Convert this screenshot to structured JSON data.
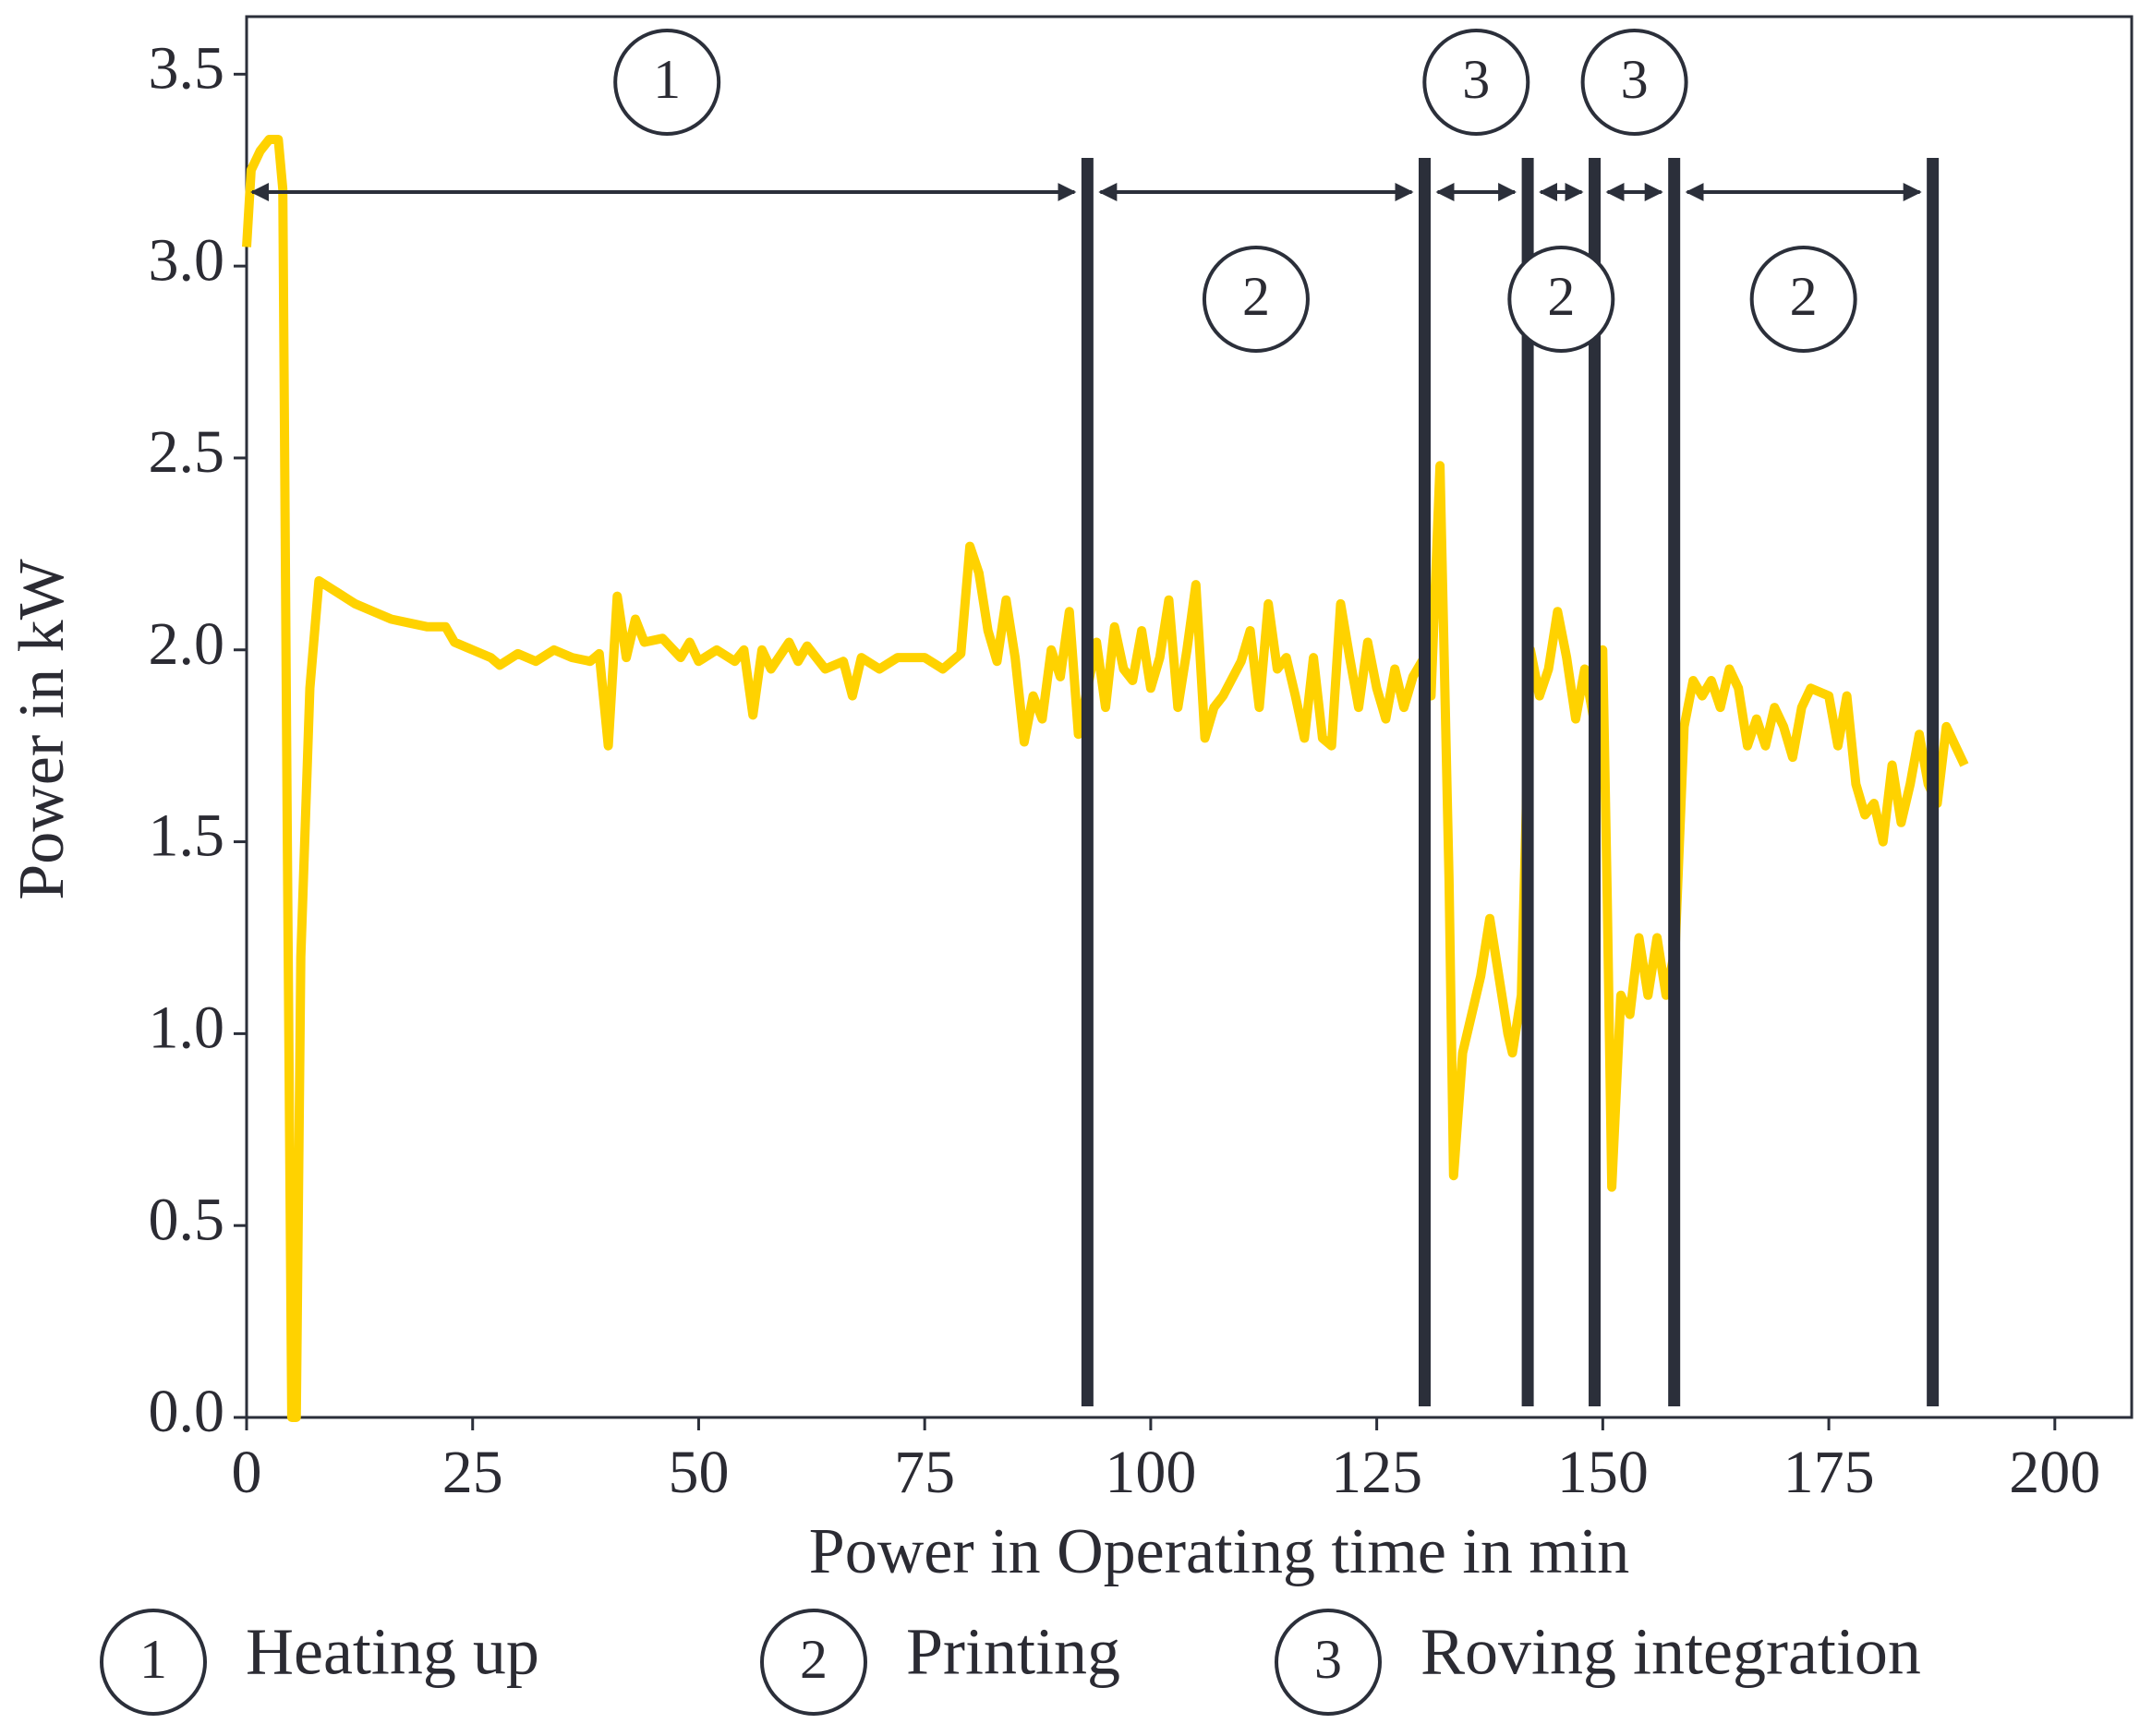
{
  "chart_data": {
    "type": "line",
    "x_label": "Power in Operating time in min",
    "y_label": "Power in kW",
    "xlim": [
      0,
      208.5
    ],
    "ylim": [
      0,
      3.65
    ],
    "xticks": [
      0,
      25,
      50,
      75,
      100,
      125,
      150,
      175,
      200
    ],
    "yticks": [
      {
        "value": 0,
        "label": "0.0"
      },
      0.5,
      {
        "value": 1,
        "label": "1.0"
      },
      1.5,
      {
        "value": 2,
        "label": "2.0"
      },
      2.5,
      {
        "value": 3,
        "label": "3.0"
      },
      3.5
    ],
    "grid": false,
    "color": "#ffd200",
    "x": [
      0,
      0.5,
      1.5,
      2.5,
      3.5,
      4,
      4.5,
      5,
      5.5,
      6,
      7,
      8,
      10,
      12,
      14,
      16,
      18,
      20,
      22,
      23,
      25,
      27,
      28,
      30,
      32,
      34,
      36,
      38,
      39,
      40,
      41,
      42,
      43,
      44,
      46,
      48,
      49,
      50,
      52,
      54,
      55,
      56,
      57,
      58,
      60,
      61,
      62,
      64,
      66,
      67,
      68,
      70,
      72,
      75,
      77,
      79,
      80,
      81,
      82,
      83,
      84,
      85,
      86,
      87,
      88,
      89,
      90,
      91,
      92,
      93,
      94,
      95,
      96,
      97,
      98,
      99,
      100,
      101,
      102,
      103,
      104,
      105,
      106,
      107,
      108,
      110,
      111,
      112,
      113,
      114,
      115,
      116,
      117,
      118,
      119,
      120,
      121,
      122,
      123,
      124,
      125,
      126,
      127,
      128,
      129,
      130,
      131,
      132,
      133,
      133.5,
      134.5,
      135.5,
      136.5,
      137.5,
      138.5,
      139.5,
      140,
      141,
      142,
      143,
      144,
      145,
      146,
      147,
      148,
      149,
      150,
      150.5,
      151,
      152,
      153,
      154,
      155,
      156,
      157,
      158,
      159,
      160,
      161,
      162,
      163,
      164,
      165,
      166,
      167,
      168,
      169,
      170,
      171,
      172,
      173,
      175,
      176,
      177,
      178,
      179,
      180,
      181,
      182,
      183,
      184,
      185,
      186,
      187,
      188,
      189,
      190
    ],
    "values": [
      3.05,
      3.25,
      3.3,
      3.33,
      3.33,
      3.2,
      1.5,
      0,
      0,
      1.2,
      1.9,
      2.18,
      2.15,
      2.12,
      2.1,
      2.08,
      2.07,
      2.06,
      2.06,
      2.02,
      2,
      1.98,
      1.96,
      1.99,
      1.97,
      2,
      1.98,
      1.97,
      1.99,
      1.75,
      2.14,
      1.98,
      2.08,
      2.02,
      2.03,
      1.98,
      2.02,
      1.97,
      2,
      1.97,
      2,
      1.83,
      2,
      1.95,
      2.02,
      1.97,
      2.01,
      1.95,
      1.97,
      1.88,
      1.98,
      1.95,
      1.98,
      1.98,
      1.95,
      1.99,
      2.27,
      2.2,
      2.05,
      1.97,
      2.13,
      1.98,
      1.76,
      1.88,
      1.82,
      2,
      1.93,
      2.1,
      1.78,
      1.9,
      2.02,
      1.85,
      2.06,
      1.95,
      1.92,
      2.05,
      1.9,
      1.98,
      2.13,
      1.85,
      2,
      2.17,
      1.77,
      1.85,
      1.88,
      1.97,
      2.05,
      1.85,
      2.12,
      1.95,
      1.98,
      1.88,
      1.77,
      1.98,
      1.77,
      1.75,
      2.12,
      1.98,
      1.85,
      2.02,
      1.9,
      1.82,
      1.95,
      1.85,
      1.93,
      1.97,
      1.88,
      2.48,
      1.4,
      0.63,
      0.95,
      1.05,
      1.15,
      1.3,
      1.15,
      1,
      0.95,
      1.1,
      2,
      1.88,
      1.95,
      2.1,
      1.98,
      1.82,
      1.95,
      1.82,
      2,
      1.35,
      0.6,
      1.1,
      1.05,
      1.25,
      1.1,
      1.25,
      1.1,
      1.22,
      1.8,
      1.92,
      1.88,
      1.92,
      1.85,
      1.95,
      1.9,
      1.75,
      1.82,
      1.75,
      1.85,
      1.8,
      1.72,
      1.85,
      1.9,
      1.88,
      1.75,
      1.88,
      1.65,
      1.57,
      1.6,
      1.5,
      1.7,
      1.55,
      1.65,
      1.78,
      1.65,
      1.6,
      1.8,
      1.75,
      1.7
    ],
    "phases": [
      {
        "start": 0,
        "end": 93,
        "label": "1",
        "position": "top"
      },
      {
        "start": 93,
        "end": 130.3,
        "label": "2",
        "position": "bottom"
      },
      {
        "start": 130.3,
        "end": 141.7,
        "label": "3",
        "position": "top"
      },
      {
        "start": 141.7,
        "end": 149.1,
        "label": "2",
        "position": "bottom"
      },
      {
        "start": 149.1,
        "end": 157.9,
        "label": "3",
        "position": "top"
      },
      {
        "start": 157.9,
        "end": 186.5,
        "label": "2",
        "position": "bottom"
      }
    ],
    "legend": [
      {
        "symbol": "1",
        "label": "Heating up"
      },
      {
        "symbol": "2",
        "label": "Printing"
      },
      {
        "symbol": "3",
        "label": "Roving integration"
      }
    ]
  }
}
